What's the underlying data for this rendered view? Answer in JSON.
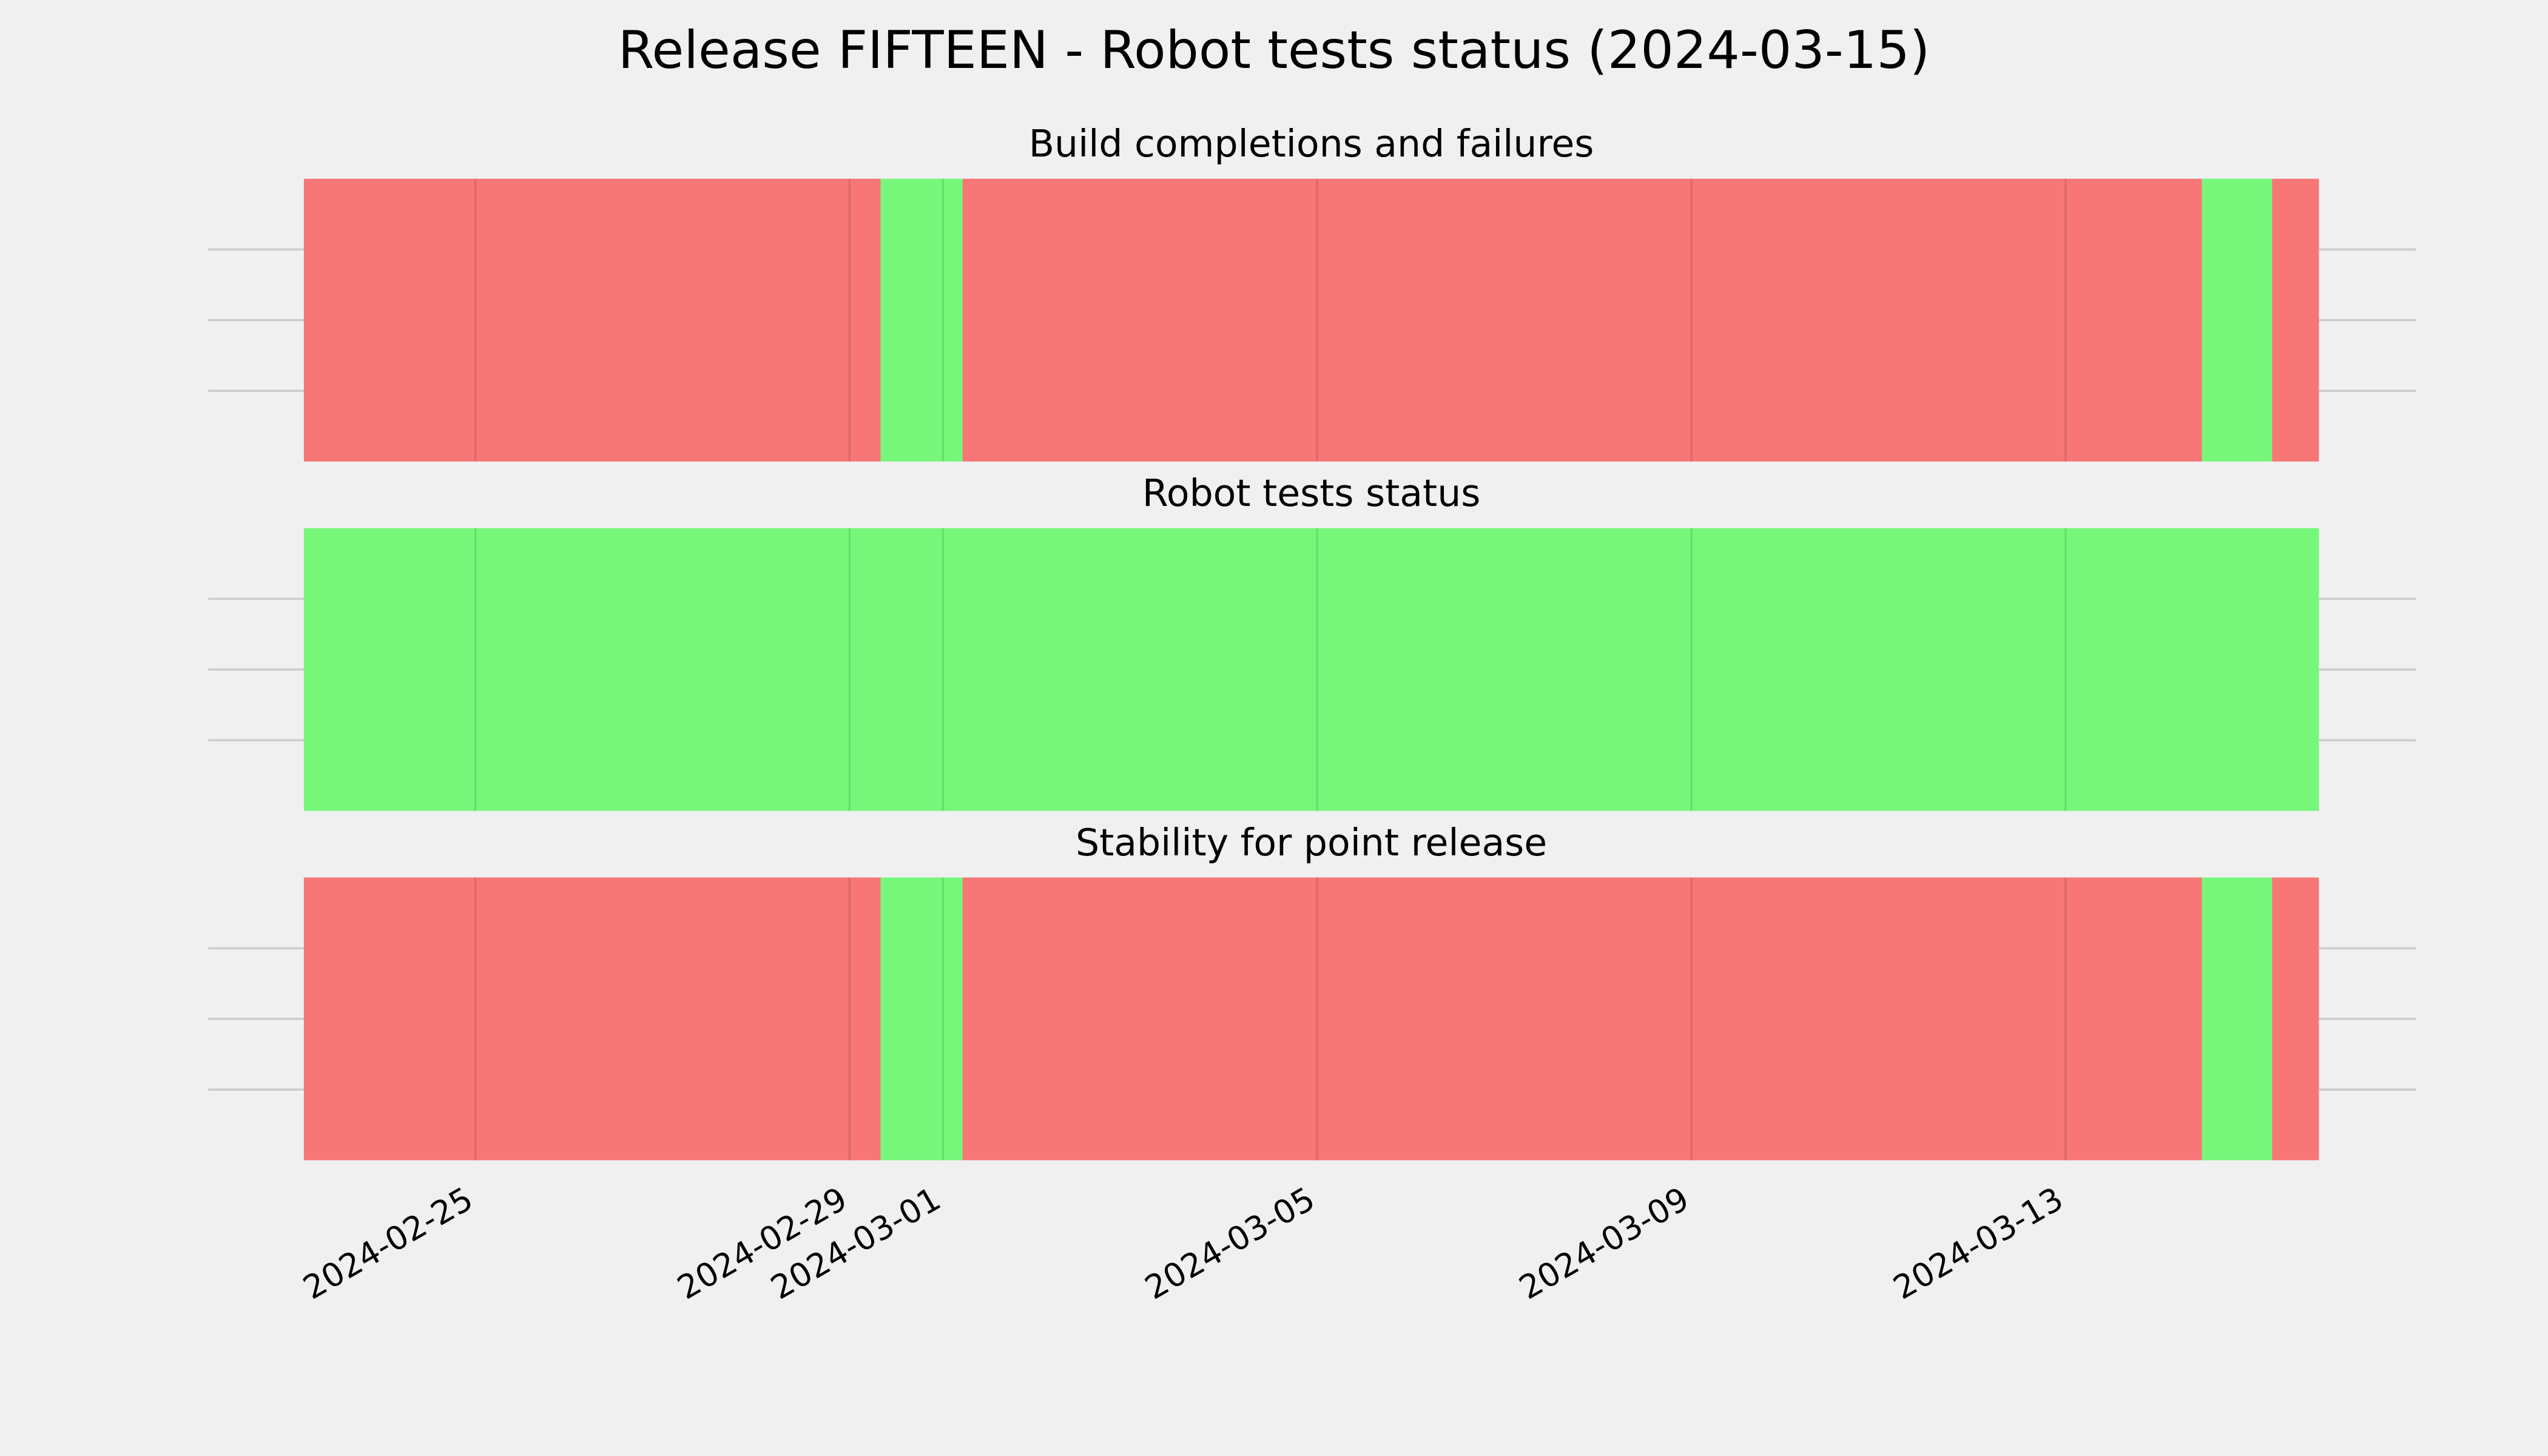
{
  "title": "Release FIFTEEN - Robot tests status (2024-03-15)",
  "chart_data": [
    {
      "type": "timeline",
      "title": "Build completions and failures",
      "xlim": [
        "2024-02-23T04:00",
        "2024-03-15T17:00"
      ],
      "xticks": [
        "2024-02-25",
        "2024-02-29",
        "2024-03-01",
        "2024-03-05",
        "2024-03-09",
        "2024-03-13"
      ],
      "ylim": [
        0,
        1
      ],
      "yticks": [
        0.25,
        0.5,
        0.75
      ],
      "grid": true,
      "segments": [
        {
          "start": "2024-02-23T04:00",
          "end": "2024-02-29T08:00",
          "color": "#f77676"
        },
        {
          "start": "2024-02-29T08:00",
          "end": "2024-03-01T05:00",
          "color": "#76f77a"
        },
        {
          "start": "2024-03-01T05:00",
          "end": "2024-03-14T11:00",
          "color": "#f77676"
        },
        {
          "start": "2024-03-14T11:00",
          "end": "2024-03-15T05:00",
          "color": "#76f77a"
        },
        {
          "start": "2024-03-15T05:00",
          "end": "2024-03-15T17:00",
          "color": "#f77676"
        }
      ]
    },
    {
      "type": "timeline",
      "title": "Robot tests status",
      "xlim": [
        "2024-02-23T04:00",
        "2024-03-15T17:00"
      ],
      "xticks": [
        "2024-02-25",
        "2024-02-29",
        "2024-03-01",
        "2024-03-05",
        "2024-03-09",
        "2024-03-13"
      ],
      "ylim": [
        0,
        1
      ],
      "yticks": [
        0.25,
        0.5,
        0.75
      ],
      "grid": true,
      "segments": [
        {
          "start": "2024-02-23T04:00",
          "end": "2024-03-15T17:00",
          "color": "#76f77a"
        }
      ]
    },
    {
      "type": "timeline",
      "title": "Stability for point release",
      "xlim": [
        "2024-02-23T04:00",
        "2024-03-15T17:00"
      ],
      "xticks": [
        "2024-02-25",
        "2024-02-29",
        "2024-03-01",
        "2024-03-05",
        "2024-03-09",
        "2024-03-13"
      ],
      "ylim": [
        0,
        1
      ],
      "yticks": [
        0.25,
        0.5,
        0.75
      ],
      "grid": true,
      "segments": [
        {
          "start": "2024-02-23T04:00",
          "end": "2024-02-29T08:00",
          "color": "#f77676"
        },
        {
          "start": "2024-02-29T08:00",
          "end": "2024-03-01T05:00",
          "color": "#76f77a"
        },
        {
          "start": "2024-03-01T05:00",
          "end": "2024-03-14T11:00",
          "color": "#f77676"
        },
        {
          "start": "2024-03-14T11:00",
          "end": "2024-03-15T05:00",
          "color": "#76f77a"
        },
        {
          "start": "2024-03-15T05:00",
          "end": "2024-03-15T17:00",
          "color": "#f77676"
        }
      ]
    }
  ]
}
